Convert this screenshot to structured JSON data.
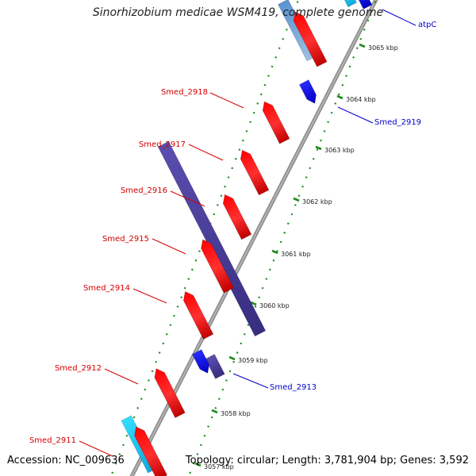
{
  "title": "Sinorhizobium medicae WSM419, complete genome",
  "footer": {
    "accession": "Accession: NC_009636",
    "topology": "Topology: circular; Length: 3,781,904 bp; Genes: 3,592"
  },
  "colors": {
    "backbone": "#9a9a9a",
    "forward_cds": "#ff0000",
    "reverse_cds": "#0000ee",
    "forward_outer": "#4c84c4",
    "reverse_outer": "#22ccff",
    "purple_feature": "#4a3f96",
    "ticks": "#1f8a1f",
    "label_forward": "#d40000",
    "label_reverse": "#0000cc"
  },
  "ticks": [
    {
      "label": "3065 kbp",
      "kbp": 3065
    },
    {
      "label": "3064 kbp",
      "kbp": 3064
    },
    {
      "label": "3063 kbp",
      "kbp": 3063
    },
    {
      "label": "3062 kbp",
      "kbp": 3062
    },
    {
      "label": "3061 kbp",
      "kbp": 3061
    },
    {
      "label": "3060 kbp",
      "kbp": 3060
    },
    {
      "label": "3059 kbp",
      "kbp": 3059
    },
    {
      "label": "3058 kbp",
      "kbp": 3058
    },
    {
      "label": "3057 kbp",
      "kbp": 3057
    }
  ],
  "gene_labels": [
    {
      "name": "atpC",
      "strand": "reverse"
    },
    {
      "name": "Smed_2918",
      "strand": "forward"
    },
    {
      "name": "Smed_2919",
      "strand": "reverse"
    },
    {
      "name": "Smed_2917",
      "strand": "forward"
    },
    {
      "name": "Smed_2916",
      "strand": "forward"
    },
    {
      "name": "Smed_2915",
      "strand": "forward"
    },
    {
      "name": "Smed_2914",
      "strand": "forward"
    },
    {
      "name": "Smed_2912",
      "strand": "forward"
    },
    {
      "name": "Smed_2913",
      "strand": "reverse"
    },
    {
      "name": "Smed_2911",
      "strand": "forward"
    }
  ]
}
